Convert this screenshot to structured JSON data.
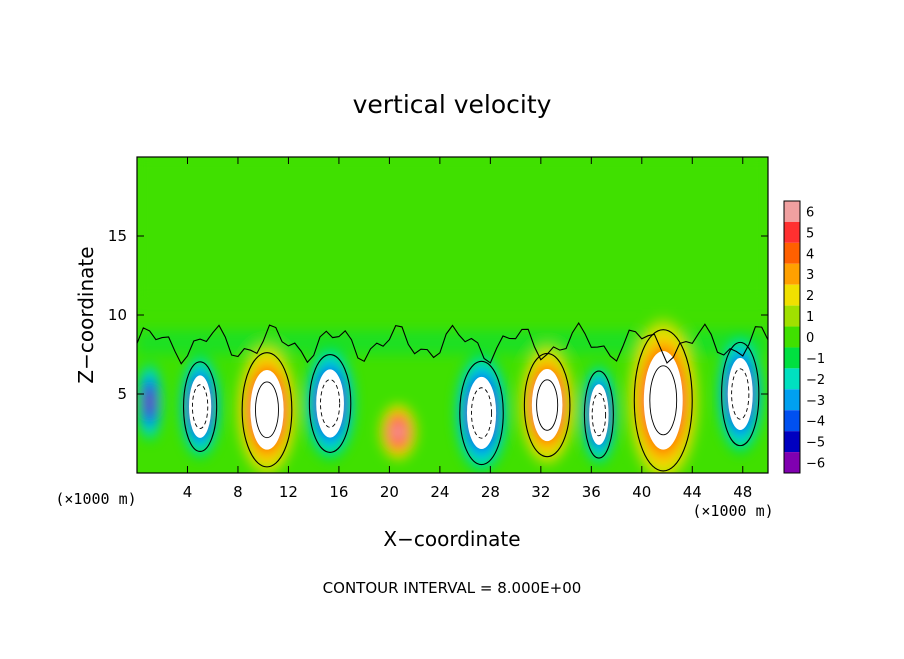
{
  "chart_data": {
    "type": "heatmap",
    "title": "vertical velocity",
    "xlabel": "X−coordinate",
    "ylabel": "Z−coordinate",
    "x_unit_label": "(×1000 m)",
    "z_unit_label": "(×1000 m)",
    "footer": "CONTOUR INTERVAL = 8.000E+00",
    "xlim": [
      0,
      50
    ],
    "ylim": [
      0,
      20
    ],
    "x_ticks": [
      4,
      8,
      12,
      16,
      20,
      24,
      28,
      32,
      36,
      40,
      44,
      48
    ],
    "y_ticks": [
      5,
      10,
      15
    ],
    "colorbar": {
      "range": [
        -6,
        6
      ],
      "ticks": [
        6,
        5,
        4,
        3,
        2,
        1,
        0,
        -1,
        -2,
        -3,
        -4,
        -5,
        -6
      ],
      "tick_labels": [
        "6",
        "5",
        "4",
        "3",
        "2",
        "1",
        "0",
        "−1",
        "−2",
        "−3",
        "−4",
        "−5",
        "−6"
      ],
      "colors": [
        "#f0a0a0",
        "#ff3030",
        "#ff6000",
        "#ffa000",
        "#f0e000",
        "#a0e000",
        "#40e000",
        "#00e040",
        "#00e0c0",
        "#00a0f0",
        "#0050f0",
        "#0000c0",
        "#8000b0"
      ]
    },
    "cells": [
      {
        "x": 1.0,
        "z": 4.5,
        "rx": 1.0,
        "rz": 2.5,
        "w": -5.5
      },
      {
        "x": 5.0,
        "z": 4.2,
        "rx": 1.6,
        "rz": 3.3,
        "w": -9
      },
      {
        "x": 10.3,
        "z": 4.0,
        "rx": 2.4,
        "rz": 4.2,
        "w": 10
      },
      {
        "x": 15.3,
        "z": 4.4,
        "rx": 2.0,
        "rz": 3.6,
        "w": -9
      },
      {
        "x": 20.7,
        "z": 2.6,
        "rx": 1.5,
        "rz": 1.8,
        "w": 6
      },
      {
        "x": 27.3,
        "z": 3.8,
        "rx": 2.1,
        "rz": 3.8,
        "w": -9
      },
      {
        "x": 32.5,
        "z": 4.3,
        "rx": 2.2,
        "rz": 3.8,
        "w": 10
      },
      {
        "x": 36.6,
        "z": 3.7,
        "rx": 1.4,
        "rz": 3.2,
        "w": -8
      },
      {
        "x": 41.7,
        "z": 4.6,
        "rx": 2.8,
        "rz": 5.2,
        "w": 11
      },
      {
        "x": 47.8,
        "z": 5.0,
        "rx": 1.8,
        "rz": 3.8,
        "w": -9
      }
    ]
  }
}
